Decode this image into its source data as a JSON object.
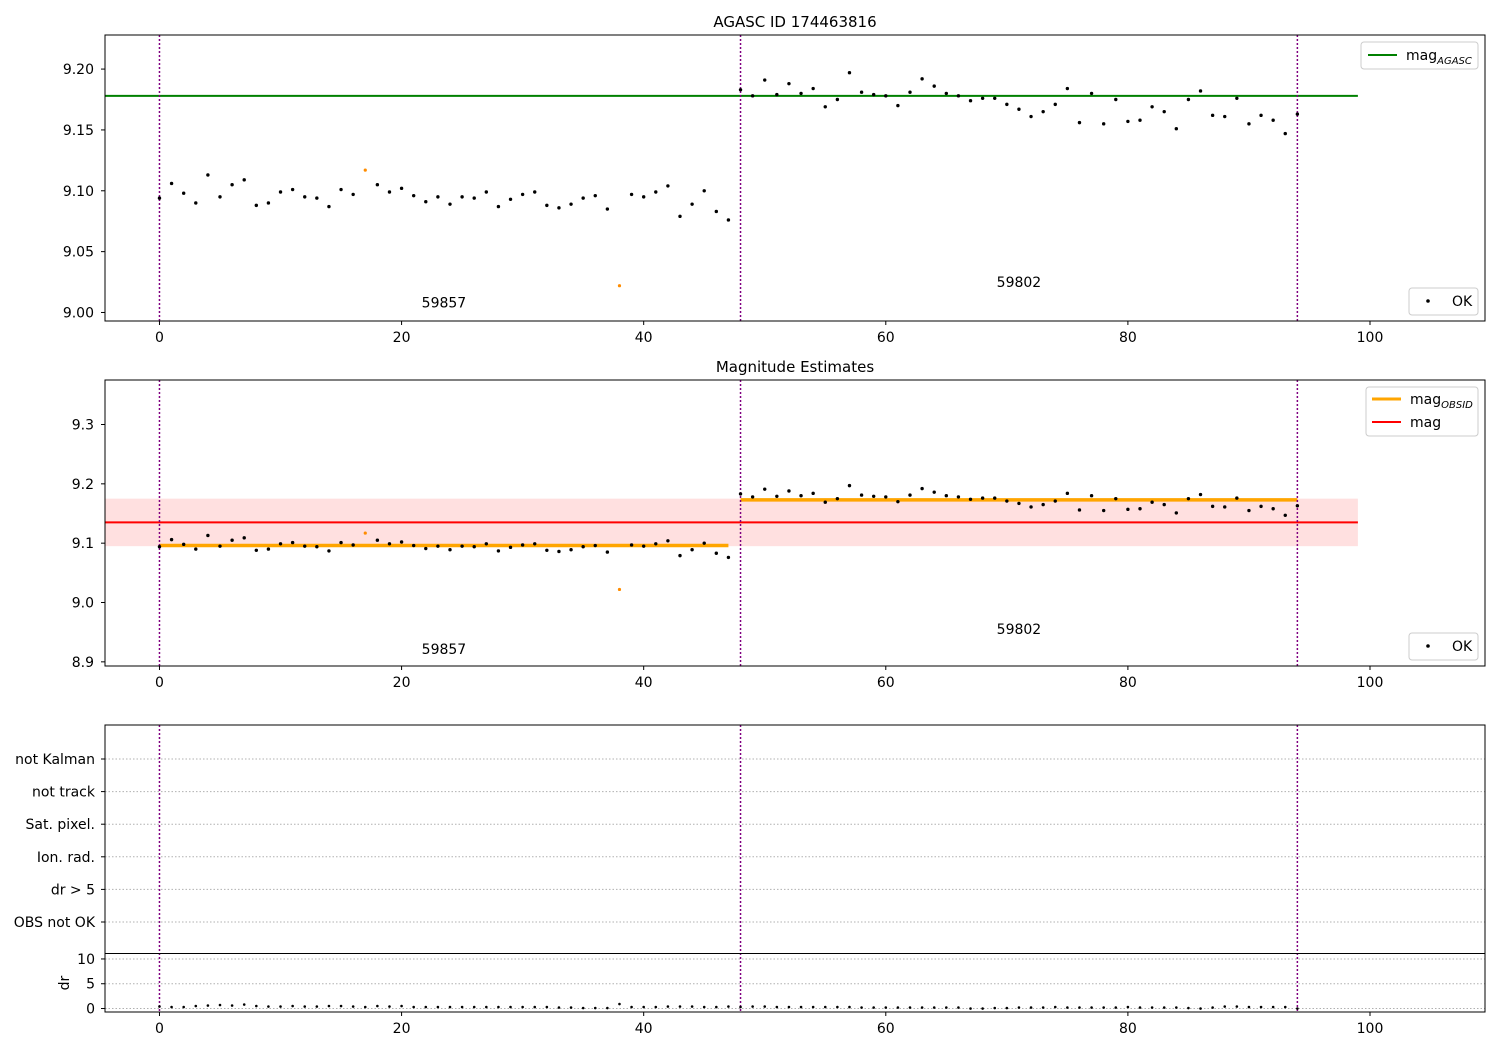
{
  "colors": {
    "agasc": "#008000",
    "obsid": "#ffa500",
    "mag": "#ff0000",
    "band": "#ffe0e0",
    "divider": "#800080",
    "ok": "#000000",
    "flagged": "#ff8c00"
  },
  "legend": {
    "ok": "OK",
    "mag_agasc_base": "mag",
    "mag_agasc_sub": "AGASC",
    "mag_obsid_base": "mag",
    "mag_obsid_sub": "OBSID",
    "mag": "mag"
  },
  "chart_data": [
    {
      "type": "scatter",
      "title": "AGASC ID 174463816",
      "xlim": [
        -4.5,
        109.5
      ],
      "ylim": [
        8.993,
        9.228
      ],
      "xticks": [
        "0",
        "20",
        "40",
        "60",
        "80",
        "100"
      ],
      "yticks": [
        "9.00",
        "9.05",
        "9.10",
        "9.15",
        "9.20"
      ],
      "obsid_labels": [
        {
          "text": "59857",
          "x": 23.5,
          "y": 9.004
        },
        {
          "text": "59802",
          "x": 71,
          "y": 9.021
        }
      ],
      "series": [
        {
          "name": "mag_AGASC",
          "kind": "hline",
          "y": 9.178,
          "x": [
            -4.5,
            99
          ]
        },
        {
          "name": "OK",
          "kind": "points"
        }
      ],
      "dividers_x": [
        0,
        48,
        94
      ],
      "grid": false,
      "legend_position": "top-right / bottom-right"
    },
    {
      "type": "scatter",
      "title": "Magnitude Estimates",
      "xlim": [
        -4.5,
        109.5
      ],
      "ylim": [
        8.893,
        9.375
      ],
      "xticks": [
        "0",
        "20",
        "40",
        "60",
        "80",
        "100"
      ],
      "yticks": [
        "8.9",
        "9.0",
        "9.1",
        "9.2",
        "9.3"
      ],
      "obsid_labels": [
        {
          "text": "59857",
          "x": 23.5,
          "y": 8.913
        },
        {
          "text": "59802",
          "x": 71,
          "y": 8.947
        }
      ],
      "series": [
        {
          "name": "mag_OBSID",
          "kind": "segments",
          "segments": [
            [
              0,
              47,
              9.096
            ],
            [
              48,
              94,
              9.173
            ]
          ]
        },
        {
          "name": "mag",
          "kind": "hline",
          "y": 9.135,
          "band": [
            9.095,
            9.175
          ],
          "x": [
            -4.5,
            99
          ]
        },
        {
          "name": "OK",
          "kind": "points"
        }
      ],
      "dividers_x": [
        0,
        48,
        94
      ],
      "grid": false,
      "legend_position": "top-right / bottom-right"
    },
    {
      "type": "scatter",
      "title": "",
      "flag_labels": [
        "not Kalman",
        "not track",
        "Sat. pixel.",
        "Ion. rad.",
        "dr > 5",
        "OBS not OK"
      ],
      "dr_ylabel": "dr",
      "dr_ylim": [
        -0.5,
        11
      ],
      "dr_yticks": [
        "0",
        "5",
        "10"
      ],
      "xlim": [
        -4.5,
        109.5
      ],
      "xticks": [
        "0",
        "20",
        "40",
        "60",
        "80",
        "100"
      ],
      "dividers_x": [
        0,
        48,
        94
      ],
      "grid": true
    }
  ],
  "observations": {
    "x": [
      0,
      1,
      2,
      3,
      4,
      5,
      6,
      7,
      8,
      9,
      10,
      11,
      12,
      13,
      14,
      15,
      16,
      17,
      18,
      19,
      20,
      21,
      22,
      23,
      24,
      25,
      26,
      27,
      28,
      29,
      30,
      31,
      32,
      33,
      34,
      35,
      36,
      37,
      38,
      39,
      40,
      41,
      42,
      43,
      44,
      45,
      46,
      47,
      48,
      49,
      50,
      51,
      52,
      53,
      54,
      55,
      56,
      57,
      58,
      59,
      60,
      61,
      62,
      63,
      64,
      65,
      66,
      67,
      68,
      69,
      70,
      71,
      72,
      73,
      74,
      75,
      76,
      77,
      78,
      79,
      80,
      81,
      82,
      83,
      84,
      85,
      86,
      87,
      88,
      89,
      90,
      91,
      92,
      93,
      94
    ],
    "mag": [
      9.094,
      9.106,
      9.098,
      9.09,
      9.113,
      9.095,
      9.105,
      9.109,
      9.088,
      9.09,
      9.099,
      9.101,
      9.095,
      9.094,
      9.087,
      9.101,
      9.097,
      9.117,
      9.105,
      9.099,
      9.102,
      9.096,
      9.091,
      9.095,
      9.089,
      9.095,
      9.094,
      9.099,
      9.087,
      9.093,
      9.097,
      9.099,
      9.088,
      9.086,
      9.089,
      9.094,
      9.096,
      9.085,
      9.022,
      9.097,
      9.095,
      9.099,
      9.104,
      9.079,
      9.089,
      9.1,
      9.083,
      9.076,
      9.183,
      9.178,
      9.191,
      9.179,
      9.188,
      9.18,
      9.184,
      9.169,
      9.175,
      9.197,
      9.181,
      9.179,
      9.178,
      9.17,
      9.181,
      9.192,
      9.186,
      9.18,
      9.178,
      9.174,
      9.176,
      9.176,
      9.171,
      9.167,
      9.161,
      9.165,
      9.171,
      9.184,
      9.156,
      9.18,
      9.155,
      9.175,
      9.157,
      9.158,
      9.169,
      9.165,
      9.151,
      9.175,
      9.182,
      9.162,
      9.161,
      9.176,
      9.155,
      9.162,
      9.158,
      9.147,
      9.163
    ],
    "flagged_index": [
      17,
      38
    ],
    "dr": [
      0.4,
      0.3,
      0.3,
      0.5,
      0.6,
      0.7,
      0.6,
      0.8,
      0.5,
      0.4,
      0.4,
      0.5,
      0.4,
      0.4,
      0.5,
      0.5,
      0.4,
      0.3,
      0.5,
      0.4,
      0.5,
      0.3,
      0.3,
      0.3,
      0.3,
      0.3,
      0.3,
      0.3,
      0.3,
      0.3,
      0.3,
      0.3,
      0.3,
      0.2,
      0.2,
      0.1,
      0.1,
      0.1,
      0.9,
      0.3,
      0.3,
      0.3,
      0.4,
      0.4,
      0.4,
      0.3,
      0.3,
      0.4,
      0.3,
      0.4,
      0.4,
      0.3,
      0.3,
      0.3,
      0.3,
      0.3,
      0.3,
      0.3,
      0.2,
      0.2,
      0.2,
      0.2,
      0.2,
      0.2,
      0.2,
      0.2,
      0.2,
      0.0,
      0.0,
      0.1,
      0.1,
      0.2,
      0.2,
      0.2,
      0.3,
      0.2,
      0.2,
      0.2,
      0.2,
      0.2,
      0.3,
      0.2,
      0.2,
      0.2,
      0.2,
      0.1,
      0.0,
      0.2,
      0.4,
      0.4,
      0.3,
      0.3,
      0.3,
      0.3,
      0.0
    ]
  }
}
